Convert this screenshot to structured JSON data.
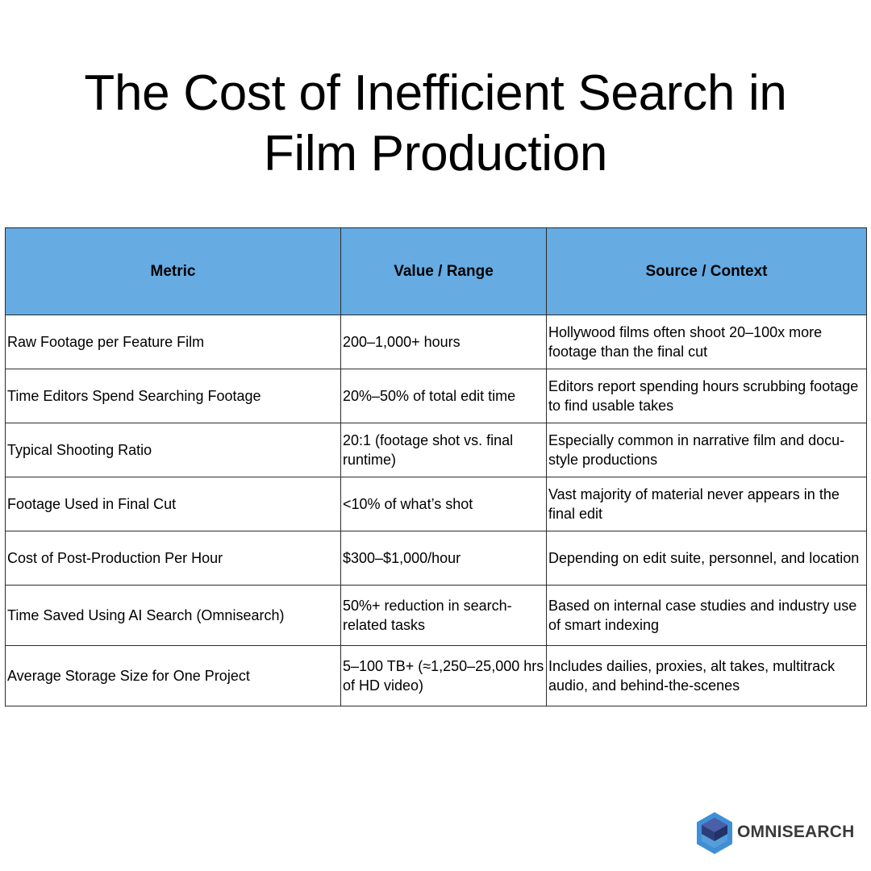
{
  "title": "The Cost of Inefficient Search in Film Production",
  "table": {
    "headers": [
      "Metric",
      "Value / Range",
      "Source / Context"
    ],
    "rows": [
      [
        "Raw Footage per Feature Film",
        "200–1,000+ hours",
        "Hollywood films often shoot 20–100x more footage than the final cut"
      ],
      [
        "Time Editors Spend Searching Footage",
        "20%–50% of total edit time",
        "Editors report spending hours scrubbing footage to find usable takes"
      ],
      [
        "Typical Shooting Ratio",
        "20:1 (footage shot vs. final runtime)",
        "Especially common in narrative film and docu-style productions"
      ],
      [
        "Footage Used in Final Cut",
        "<10% of what’s shot",
        "Vast majority of material never appears in the final edit"
      ],
      [
        "Cost of Post-Production Per Hour",
        "$300–$1,000/hour",
        "Depending on edit suite, personnel, and location"
      ],
      [
        "Time Saved Using AI Search (Omnisearch)",
        "50%+ reduction in search-related tasks",
        "Based on internal case studies and industry use of smart indexing"
      ],
      [
        "Average Storage Size for One Project",
        "5–100 TB+ (≈1,250–25,000 hrs of HD video)",
        "Includes dailies, proxies, alt takes, multitrack audio, and behind-the-scenes"
      ]
    ]
  },
  "brand": {
    "name": "OMNISEARCH",
    "logo_icon": "hexagon-cube-icon"
  },
  "colors": {
    "header_background": "#66abe2",
    "border": "#2b2b2b",
    "logo_primary": "#3f8fd6",
    "logo_dark": "#2c3e7a"
  }
}
